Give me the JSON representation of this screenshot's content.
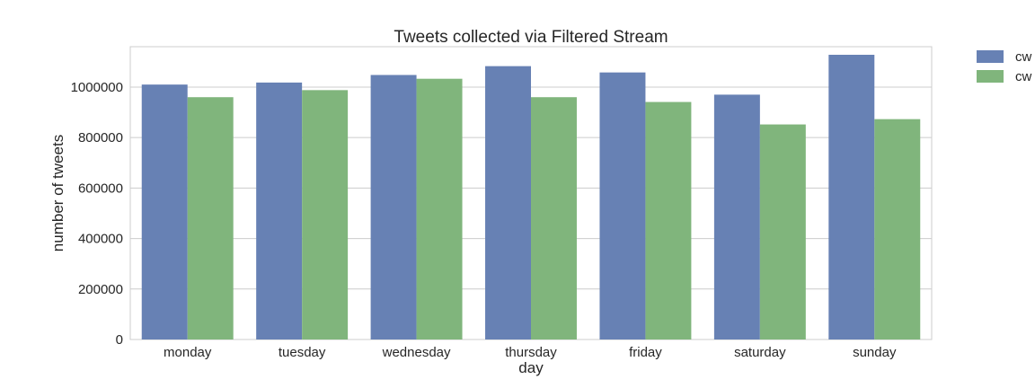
{
  "chart_data": {
    "type": "bar",
    "title": "Tweets collected via Filtered Stream",
    "xlabel": "day",
    "ylabel": "number of tweets",
    "categories": [
      "monday",
      "tuesday",
      "wednesday",
      "thursday",
      "friday",
      "saturday",
      "sunday"
    ],
    "series": [
      {
        "name": "cw",
        "color": "#6781b4",
        "values": [
          1010000,
          1018000,
          1048000,
          1083000,
          1058000,
          970000,
          1128000
        ]
      },
      {
        "name": "cw",
        "color": "#80b57c",
        "values": [
          960000,
          988000,
          1033000,
          960000,
          941000,
          852000,
          873000
        ]
      }
    ],
    "ylim": [
      0,
      1160000
    ],
    "yticks": [
      0,
      200000,
      400000,
      600000,
      800000,
      1000000
    ],
    "grid": true,
    "legend": "outside-top-right"
  }
}
